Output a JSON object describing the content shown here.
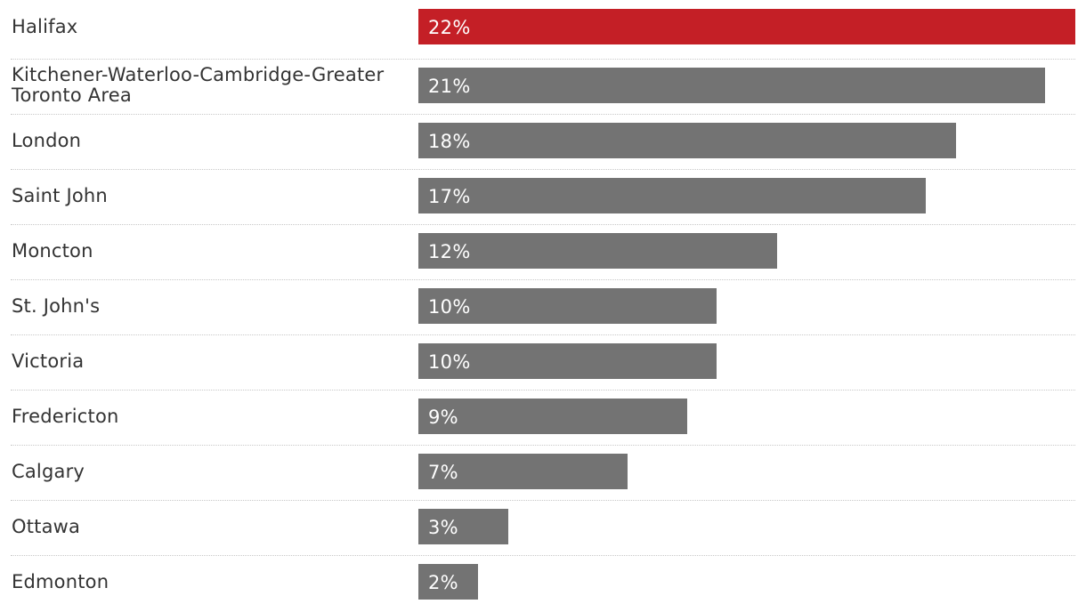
{
  "chart_data": {
    "type": "bar",
    "orientation": "horizontal",
    "categories": [
      "Halifax",
      "Kitchener-Waterloo-Cambridge-Greater Toronto Area",
      "London",
      "Saint John",
      "Moncton",
      "St. John's",
      "Victoria",
      "Fredericton",
      "Calgary",
      "Ottawa",
      "Edmonton"
    ],
    "values": [
      22,
      21,
      18,
      17,
      12,
      10,
      10,
      9,
      7,
      3,
      2
    ],
    "value_labels": [
      "22%",
      "21%",
      "18%",
      "17%",
      "12%",
      "10%",
      "10%",
      "9%",
      "7%",
      "3%",
      "2%"
    ],
    "unit": "%",
    "highlight_category": "Halifax",
    "xlim": [
      0,
      22
    ],
    "grid": false,
    "title": "",
    "xlabel": "",
    "ylabel": ""
  },
  "colors": {
    "highlight": "#c41f26",
    "default_bar": "#737373",
    "label_text": "#333333",
    "value_text": "#ffffff",
    "divider": "#c8c8c8"
  }
}
